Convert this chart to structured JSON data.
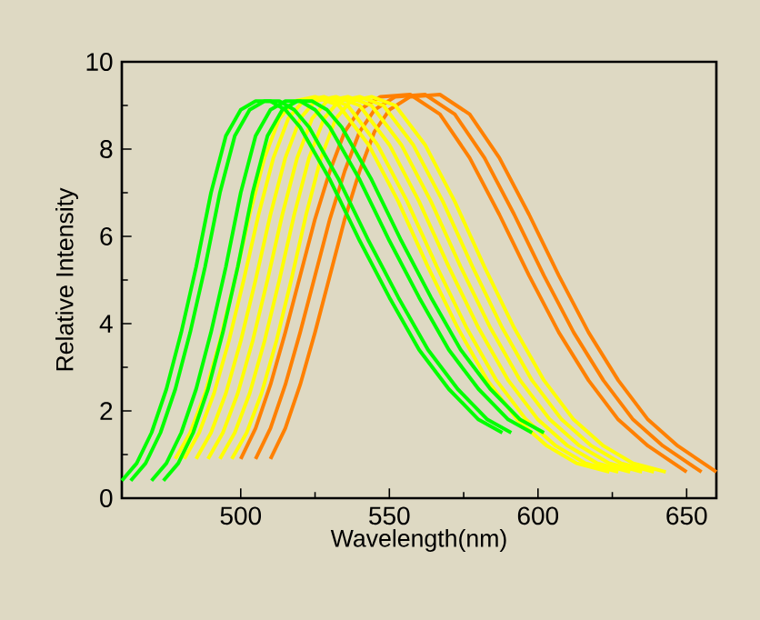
{
  "chart_data": {
    "type": "line",
    "xlabel": "Wavelength(nm)",
    "ylabel": "Relative Intensity",
    "xlim": [
      460,
      660
    ],
    "ylim": [
      0,
      10
    ],
    "xticks": [
      500,
      550,
      600,
      650
    ],
    "yticks": [
      0,
      2,
      4,
      6,
      8,
      10
    ],
    "series": [
      {
        "color": "#00ff00",
        "x": [
          460,
          465,
          470,
          475,
          480,
          485,
          490,
          495,
          500,
          505,
          510,
          515,
          520,
          530,
          540,
          550,
          560,
          570,
          580,
          588
        ],
        "values": [
          0.4,
          0.8,
          1.5,
          2.5,
          3.8,
          5.3,
          7.0,
          8.3,
          8.9,
          9.1,
          9.1,
          8.9,
          8.5,
          7.3,
          5.9,
          4.6,
          3.4,
          2.5,
          1.8,
          1.5
        ]
      },
      {
        "color": "#00ff00",
        "x": [
          463,
          468,
          473,
          478,
          483,
          488,
          493,
          498,
          503,
          508,
          513,
          518,
          523,
          533,
          543,
          553,
          563,
          573,
          583,
          591
        ],
        "values": [
          0.4,
          0.8,
          1.5,
          2.5,
          3.8,
          5.3,
          7.0,
          8.3,
          8.9,
          9.1,
          9.1,
          8.9,
          8.5,
          7.3,
          5.9,
          4.6,
          3.4,
          2.5,
          1.8,
          1.5
        ]
      },
      {
        "color": "#00ff00",
        "x": [
          470,
          475,
          480,
          485,
          490,
          495,
          500,
          505,
          510,
          515,
          520,
          525,
          530,
          540,
          550,
          560,
          570,
          580,
          590,
          598
        ],
        "values": [
          0.4,
          0.8,
          1.5,
          2.5,
          3.8,
          5.3,
          7.0,
          8.3,
          8.9,
          9.1,
          9.1,
          8.9,
          8.5,
          7.3,
          5.9,
          4.6,
          3.4,
          2.5,
          1.8,
          1.5
        ]
      },
      {
        "color": "#00ff00",
        "x": [
          474,
          479,
          484,
          489,
          494,
          499,
          504,
          509,
          514,
          519,
          524,
          529,
          534,
          544,
          554,
          564,
          574,
          584,
          594,
          602
        ],
        "values": [
          0.4,
          0.8,
          1.5,
          2.5,
          3.8,
          5.3,
          7.0,
          8.3,
          8.9,
          9.1,
          9.1,
          8.9,
          8.5,
          7.3,
          5.9,
          4.6,
          3.4,
          2.5,
          1.8,
          1.5
        ]
      },
      {
        "color": "#ffff00",
        "x": [
          478,
          483,
          488,
          493,
          498,
          503,
          508,
          513,
          518,
          525,
          533,
          543,
          553,
          563,
          573,
          583,
          593,
          603,
          613,
          624
        ],
        "values": [
          0.9,
          1.5,
          2.4,
          3.6,
          5.0,
          6.5,
          7.8,
          8.7,
          9.1,
          9.2,
          9.0,
          8.1,
          6.8,
          5.3,
          3.9,
          2.7,
          1.8,
          1.2,
          0.8,
          0.6
        ]
      },
      {
        "color": "#ffff00",
        "x": [
          481,
          486,
          491,
          496,
          501,
          506,
          511,
          516,
          521,
          528,
          536,
          546,
          556,
          566,
          576,
          586,
          596,
          606,
          616,
          627
        ],
        "values": [
          0.9,
          1.5,
          2.4,
          3.6,
          5.0,
          6.5,
          7.8,
          8.7,
          9.1,
          9.2,
          9.0,
          8.1,
          6.8,
          5.3,
          3.9,
          2.7,
          1.8,
          1.2,
          0.8,
          0.6
        ]
      },
      {
        "color": "#ffff00",
        "x": [
          485,
          490,
          495,
          500,
          505,
          510,
          515,
          520,
          525,
          532,
          540,
          550,
          560,
          570,
          580,
          590,
          600,
          610,
          620,
          631
        ],
        "values": [
          0.9,
          1.5,
          2.4,
          3.6,
          5.0,
          6.5,
          7.8,
          8.7,
          9.1,
          9.2,
          9.0,
          8.1,
          6.8,
          5.3,
          3.9,
          2.7,
          1.8,
          1.2,
          0.8,
          0.6
        ]
      },
      {
        "color": "#ffff00",
        "x": [
          489,
          494,
          499,
          504,
          509,
          514,
          519,
          524,
          529,
          536,
          544,
          554,
          564,
          574,
          584,
          594,
          604,
          614,
          624,
          635
        ],
        "values": [
          0.9,
          1.5,
          2.4,
          3.6,
          5.0,
          6.5,
          7.8,
          8.7,
          9.1,
          9.2,
          9.0,
          8.1,
          6.8,
          5.3,
          3.9,
          2.7,
          1.8,
          1.2,
          0.8,
          0.6
        ]
      },
      {
        "color": "#ffff00",
        "x": [
          493,
          498,
          503,
          508,
          513,
          518,
          523,
          528,
          533,
          540,
          548,
          558,
          568,
          578,
          588,
          598,
          608,
          618,
          628,
          639
        ],
        "values": [
          0.9,
          1.5,
          2.4,
          3.6,
          5.0,
          6.5,
          7.8,
          8.7,
          9.1,
          9.2,
          9.0,
          8.1,
          6.8,
          5.3,
          3.9,
          2.7,
          1.8,
          1.2,
          0.8,
          0.6
        ]
      },
      {
        "color": "#ffff00",
        "x": [
          497,
          502,
          507,
          512,
          517,
          522,
          527,
          532,
          537,
          544,
          552,
          562,
          572,
          582,
          592,
          602,
          612,
          622,
          632,
          643
        ],
        "values": [
          0.9,
          1.5,
          2.4,
          3.6,
          5.0,
          6.5,
          7.8,
          8.7,
          9.1,
          9.2,
          9.0,
          8.1,
          6.8,
          5.3,
          3.9,
          2.7,
          1.8,
          1.2,
          0.8,
          0.6
        ]
      },
      {
        "color": "#ff8000",
        "x": [
          500,
          505,
          510,
          515,
          520,
          525,
          530,
          535,
          540,
          547,
          557,
          567,
          577,
          587,
          597,
          607,
          617,
          627,
          637,
          650
        ],
        "values": [
          0.9,
          1.6,
          2.6,
          3.8,
          5.1,
          6.4,
          7.5,
          8.4,
          8.9,
          9.2,
          9.25,
          8.8,
          7.8,
          6.5,
          5.1,
          3.8,
          2.7,
          1.8,
          1.2,
          0.6
        ]
      },
      {
        "color": "#ff8000",
        "x": [
          505,
          510,
          515,
          520,
          525,
          530,
          535,
          540,
          545,
          552,
          562,
          572,
          582,
          592,
          602,
          612,
          622,
          632,
          642,
          655
        ],
        "values": [
          0.9,
          1.6,
          2.6,
          3.8,
          5.1,
          6.4,
          7.5,
          8.4,
          8.9,
          9.2,
          9.25,
          8.8,
          7.8,
          6.5,
          5.1,
          3.8,
          2.7,
          1.8,
          1.2,
          0.6
        ]
      },
      {
        "color": "#ff8000",
        "x": [
          510,
          515,
          520,
          525,
          530,
          535,
          540,
          545,
          550,
          557,
          567,
          577,
          587,
          597,
          607,
          617,
          627,
          637,
          647,
          660
        ],
        "values": [
          0.9,
          1.6,
          2.6,
          3.8,
          5.1,
          6.4,
          7.5,
          8.4,
          8.9,
          9.2,
          9.25,
          8.8,
          7.8,
          6.5,
          5.1,
          3.8,
          2.7,
          1.8,
          1.2,
          0.6
        ]
      }
    ]
  }
}
